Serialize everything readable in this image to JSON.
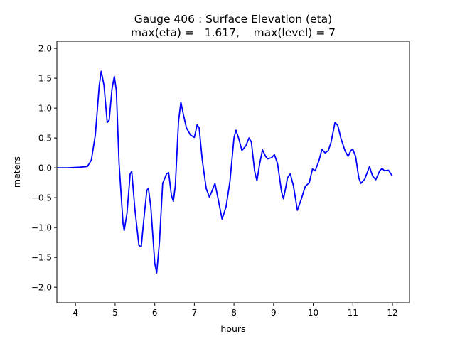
{
  "chart_data": {
    "type": "line",
    "title": "Gauge 406 : Surface Elevation (eta)",
    "subtitle": "max(eta) =   1.617,    max(level) = 7",
    "xlabel": "hours",
    "ylabel": "meters",
    "xlim": [
      3.53,
      12.43
    ],
    "ylim": [
      -2.26,
      2.12
    ],
    "xticks": [
      4,
      5,
      6,
      7,
      8,
      9,
      10,
      11,
      12
    ],
    "xtick_labels": [
      "4",
      "5",
      "6",
      "7",
      "8",
      "9",
      "10",
      "11",
      "12"
    ],
    "yticks": [
      -2.0,
      -1.5,
      -1.0,
      -0.5,
      0.0,
      0.5,
      1.0,
      1.5,
      2.0
    ],
    "ytick_labels": [
      "−2.0",
      "−1.5",
      "−1.0",
      "−0.5",
      "0.0",
      "0.5",
      "1.0",
      "1.5",
      "2.0"
    ],
    "grid": false,
    "series": [
      {
        "name": "eta",
        "color": "#0000ff",
        "x": [
          3.53,
          3.8,
          4.1,
          4.3,
          4.4,
          4.5,
          4.6,
          4.65,
          4.72,
          4.8,
          4.85,
          4.92,
          4.98,
          5.03,
          5.1,
          5.2,
          5.23,
          5.3,
          5.38,
          5.42,
          5.5,
          5.6,
          5.66,
          5.72,
          5.8,
          5.84,
          5.9,
          6.0,
          6.05,
          6.12,
          6.2,
          6.3,
          6.35,
          6.42,
          6.47,
          6.52,
          6.6,
          6.66,
          6.72,
          6.8,
          6.9,
          7.0,
          7.07,
          7.12,
          7.2,
          7.3,
          7.38,
          7.45,
          7.52,
          7.6,
          7.7,
          7.8,
          7.9,
          8.0,
          8.05,
          8.12,
          8.2,
          8.3,
          8.38,
          8.44,
          8.52,
          8.58,
          8.65,
          8.72,
          8.8,
          8.85,
          8.95,
          9.02,
          9.1,
          9.2,
          9.25,
          9.35,
          9.42,
          9.5,
          9.6,
          9.7,
          9.8,
          9.9,
          9.98,
          10.05,
          10.15,
          10.22,
          10.3,
          10.38,
          10.45,
          10.55,
          10.62,
          10.7,
          10.8,
          10.88,
          10.95,
          11.0,
          11.07,
          11.15,
          11.2,
          11.3,
          11.38,
          11.42,
          11.5,
          11.58,
          11.68,
          11.74,
          11.8,
          11.9,
          12.0
        ],
        "y": [
          0.0,
          0.0,
          0.01,
          0.02,
          0.13,
          0.55,
          1.38,
          1.617,
          1.38,
          0.76,
          0.8,
          1.32,
          1.53,
          1.3,
          0.07,
          -0.94,
          -1.05,
          -0.76,
          -0.1,
          -0.06,
          -0.7,
          -1.3,
          -1.32,
          -0.9,
          -0.38,
          -0.34,
          -0.65,
          -1.6,
          -1.76,
          -1.24,
          -0.26,
          -0.1,
          -0.08,
          -0.46,
          -0.56,
          -0.3,
          0.78,
          1.1,
          0.9,
          0.67,
          0.55,
          0.51,
          0.72,
          0.67,
          0.13,
          -0.35,
          -0.49,
          -0.38,
          -0.26,
          -0.52,
          -0.86,
          -0.65,
          -0.22,
          0.5,
          0.63,
          0.49,
          0.29,
          0.37,
          0.5,
          0.43,
          -0.05,
          -0.22,
          0.07,
          0.3,
          0.19,
          0.15,
          0.17,
          0.22,
          0.07,
          -0.4,
          -0.52,
          -0.17,
          -0.1,
          -0.3,
          -0.71,
          -0.52,
          -0.31,
          -0.25,
          -0.02,
          -0.05,
          0.13,
          0.31,
          0.25,
          0.29,
          0.43,
          0.76,
          0.71,
          0.49,
          0.29,
          0.19,
          0.29,
          0.31,
          0.19,
          -0.17,
          -0.26,
          -0.19,
          -0.05,
          0.02,
          -0.14,
          -0.2,
          -0.05,
          -0.01,
          -0.05,
          -0.04,
          -0.14
        ]
      }
    ]
  }
}
